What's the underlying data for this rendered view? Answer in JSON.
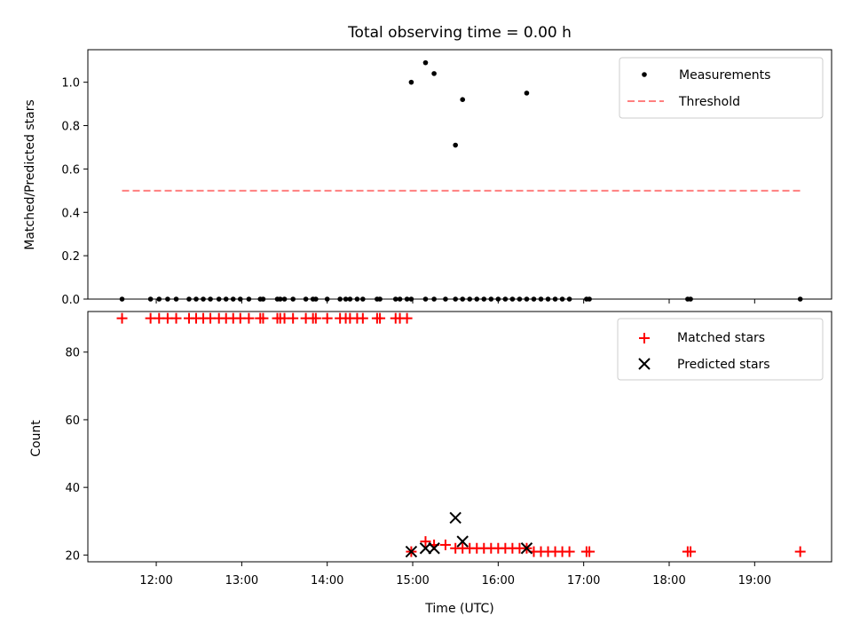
{
  "chart_data": [
    {
      "type": "scatter",
      "title": "Total observing time = 0.00 h",
      "xlabel": "",
      "ylabel": "Matched/Predicted stars",
      "xlim": [
        "11:12",
        "19:54"
      ],
      "ylim": [
        0,
        1.15
      ],
      "yticks": [
        0.0,
        0.2,
        0.4,
        0.6,
        0.8,
        1.0
      ],
      "ytick_labels": [
        "0.0",
        "0.2",
        "0.4",
        "0.6",
        "0.8",
        "1.0"
      ],
      "xticks": [
        "12:00",
        "13:00",
        "14:00",
        "15:00",
        "16:00",
        "17:00",
        "18:00",
        "19:00"
      ],
      "legend_position": "top-right",
      "series": [
        {
          "name": "Measurements",
          "style": "dot",
          "color": "#000000",
          "x": [
            "11:36",
            "11:56",
            "12:02",
            "12:08",
            "12:14",
            "12:23",
            "12:28",
            "12:33",
            "12:38",
            "12:44",
            "12:49",
            "12:54",
            "12:59",
            "13:05",
            "13:13",
            "13:15",
            "13:25",
            "13:27",
            "13:30",
            "13:36",
            "13:45",
            "13:50",
            "13:52",
            "14:00",
            "14:09",
            "14:13",
            "14:16",
            "14:21",
            "14:25",
            "14:35",
            "14:37",
            "14:48",
            "14:51",
            "14:56",
            "14:59",
            "15:09",
            "15:15",
            "15:23",
            "15:30",
            "15:35",
            "15:40",
            "15:45",
            "15:50",
            "15:55",
            "16:00",
            "16:05",
            "16:10",
            "16:15",
            "16:20",
            "16:25",
            "16:30",
            "16:35",
            "16:40",
            "16:45",
            "16:50",
            "17:02",
            "17:04",
            "18:13",
            "18:15",
            "19:32"
          ],
          "y": [
            0,
            0,
            0,
            0,
            0,
            0,
            0,
            0,
            0,
            0,
            0,
            0,
            0,
            0,
            0,
            0,
            0,
            0,
            0,
            0,
            0,
            0,
            0,
            0,
            0,
            0,
            0,
            0,
            0,
            0,
            0,
            0,
            0,
            0,
            0,
            0,
            0,
            0,
            0,
            0,
            0,
            0,
            0,
            0,
            0,
            0,
            0,
            0,
            0,
            0,
            0,
            0,
            0,
            0,
            0,
            0,
            0,
            0,
            0,
            0
          ]
        },
        {
          "name": "",
          "style": "dot",
          "color": "#000000",
          "x": [
            "14:59",
            "15:09",
            "15:15",
            "15:30",
            "15:35",
            "16:20"
          ],
          "y": [
            1.0,
            1.09,
            1.04,
            0.71,
            0.92,
            0.95
          ]
        },
        {
          "name": "Threshold",
          "style": "dashed-line",
          "color": "#ff7f7f",
          "x": [
            "11:36",
            "19:32"
          ],
          "y": [
            0.5,
            0.5
          ]
        }
      ]
    },
    {
      "type": "scatter",
      "title": "",
      "xlabel": "Time (UTC)",
      "ylabel": "Count",
      "xlim": [
        "11:12",
        "19:54"
      ],
      "ylim": [
        18,
        92
      ],
      "yticks": [
        20,
        40,
        60,
        80
      ],
      "ytick_labels": [
        "20",
        "40",
        "60",
        "80"
      ],
      "xticks": [
        "12:00",
        "13:00",
        "14:00",
        "15:00",
        "16:00",
        "17:00",
        "18:00",
        "19:00"
      ],
      "legend_position": "top-right",
      "series": [
        {
          "name": "Matched stars",
          "marker": "+",
          "color": "#ff0000",
          "x": [
            "11:36",
            "11:56",
            "12:02",
            "12:08",
            "12:14",
            "12:23",
            "12:28",
            "12:33",
            "12:38",
            "12:44",
            "12:49",
            "12:54",
            "12:59",
            "13:05",
            "13:13",
            "13:15",
            "13:25",
            "13:27",
            "13:30",
            "13:36",
            "13:45",
            "13:50",
            "13:52",
            "14:00",
            "14:09",
            "14:13",
            "14:16",
            "14:21",
            "14:25",
            "14:35",
            "14:37",
            "14:48",
            "14:51",
            "14:56",
            "14:59",
            "15:09",
            "15:15",
            "15:23",
            "15:30",
            "15:35",
            "15:40",
            "15:45",
            "15:50",
            "15:55",
            "16:00",
            "16:05",
            "16:10",
            "16:15",
            "16:20",
            "16:25",
            "16:30",
            "16:35",
            "16:40",
            "16:45",
            "16:50",
            "17:02",
            "17:04",
            "18:13",
            "18:15",
            "19:32"
          ],
          "y": [
            90,
            90,
            90,
            90,
            90,
            90,
            90,
            90,
            90,
            90,
            90,
            90,
            90,
            90,
            90,
            90,
            90,
            90,
            90,
            90,
            90,
            90,
            90,
            90,
            90,
            90,
            90,
            90,
            90,
            90,
            90,
            90,
            90,
            90,
            21,
            24,
            23,
            23,
            22,
            22,
            22,
            22,
            22,
            22,
            22,
            22,
            22,
            22,
            22,
            21,
            21,
            21,
            21,
            21,
            21,
            21,
            21,
            21,
            21,
            21
          ]
        },
        {
          "name": "Predicted stars",
          "marker": "x",
          "color": "#000000",
          "x": [
            "14:59",
            "15:09",
            "15:15",
            "15:30",
            "15:35",
            "16:20"
          ],
          "y": [
            21,
            22,
            22,
            31,
            24,
            22
          ]
        }
      ]
    }
  ]
}
